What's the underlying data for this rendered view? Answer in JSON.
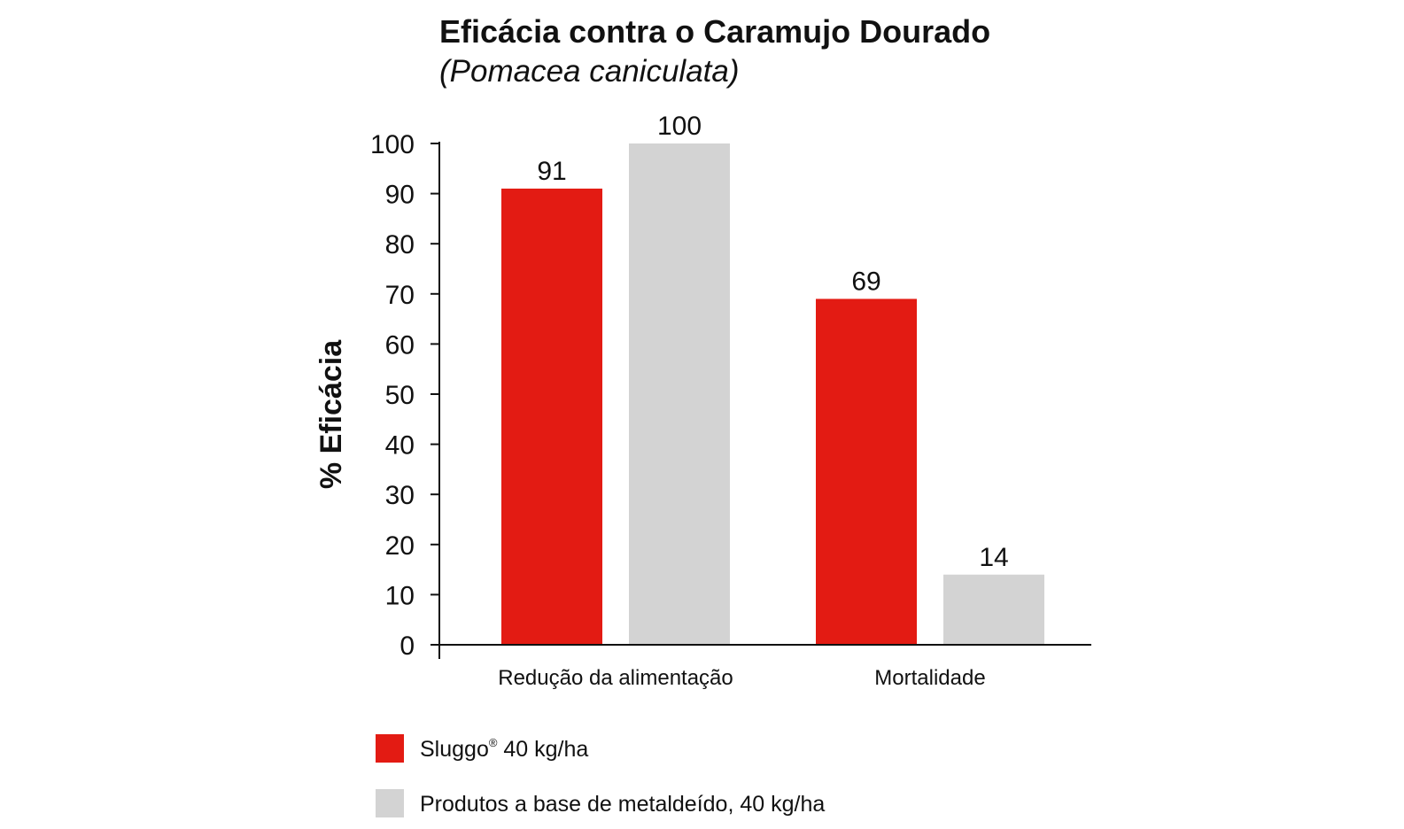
{
  "chart_data": {
    "type": "bar",
    "title": "Eficácia contra o Caramujo Dourado",
    "subtitle": "(Pomacea caniculata)",
    "xlabel": "",
    "ylabel": "% Eficácia",
    "ylim": [
      0,
      100
    ],
    "yticks": [
      0,
      10,
      20,
      30,
      40,
      50,
      60,
      70,
      80,
      90,
      100
    ],
    "categories": [
      "Redução da alimentação",
      "Mortalidade"
    ],
    "series": [
      {
        "name": "Sluggo® 40 kg/ha",
        "name_main": "Sluggo",
        "name_sup": "®",
        "name_rest": " 40 kg/ha",
        "color": "#e31b13",
        "values": [
          91,
          69
        ]
      },
      {
        "name": "Produtos a base de metaldeído, 40 kg/ha",
        "color": "#d3d3d3",
        "values": [
          100,
          14
        ]
      }
    ],
    "data_labels": true,
    "grid": false,
    "legend_position": "bottom-left"
  }
}
